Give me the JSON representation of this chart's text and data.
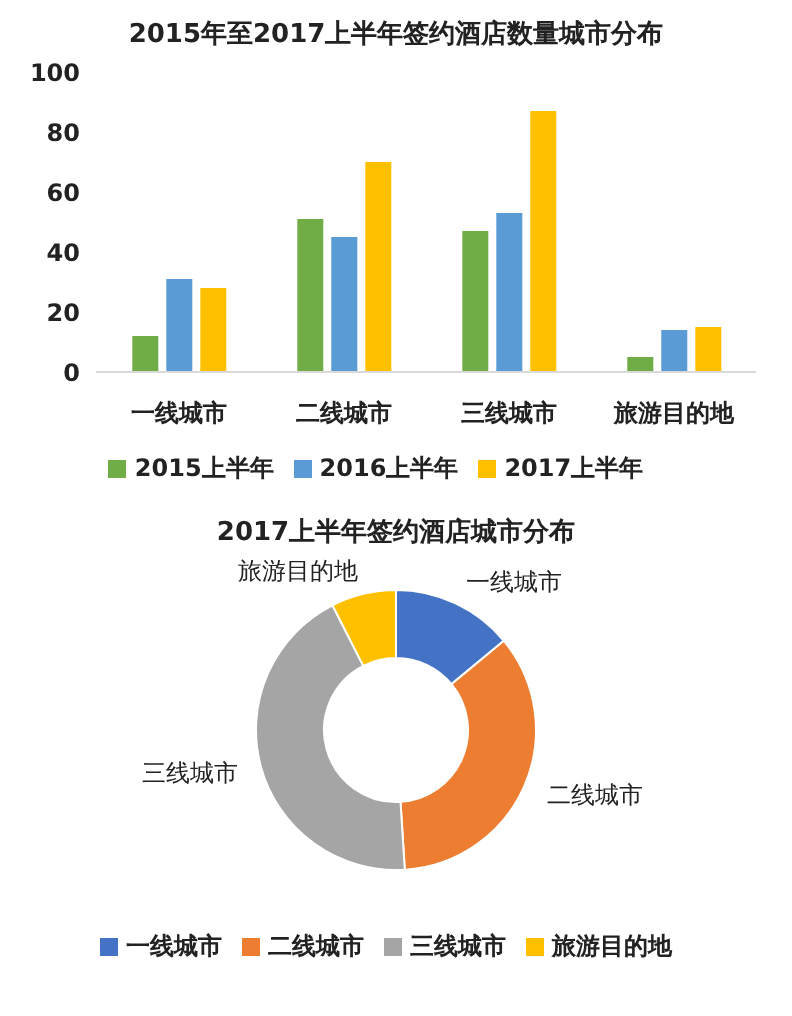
{
  "chart_data": [
    {
      "type": "bar",
      "title": "2015年至2017上半年签约酒店数量城市分布",
      "categories": [
        "一线城市",
        "二线城市",
        "三线城市",
        "旅游目的地"
      ],
      "series": [
        {
          "name": "2015上半年",
          "color": "#70ad47",
          "values": [
            12,
            51,
            47,
            5
          ]
        },
        {
          "name": "2016上半年",
          "color": "#5b9bd5",
          "values": [
            31,
            45,
            53,
            14
          ]
        },
        {
          "name": "2017上半年",
          "color": "#ffc000",
          "values": [
            28,
            70,
            87,
            15
          ]
        }
      ],
      "ylim": [
        0,
        100
      ],
      "yticks": [
        0,
        20,
        40,
        60,
        80,
        100
      ],
      "grid": false,
      "legend": "bottom"
    },
    {
      "type": "donut",
      "title": "2017上半年签约酒店城市分布",
      "categories": [
        "一线城市",
        "二线城市",
        "三线城市",
        "旅游目的地"
      ],
      "values": [
        14,
        35,
        43.5,
        7.5
      ],
      "colors": [
        "#4472c4",
        "#ed7d31",
        "#a5a5a5",
        "#ffc000"
      ],
      "legend": "bottom"
    }
  ]
}
